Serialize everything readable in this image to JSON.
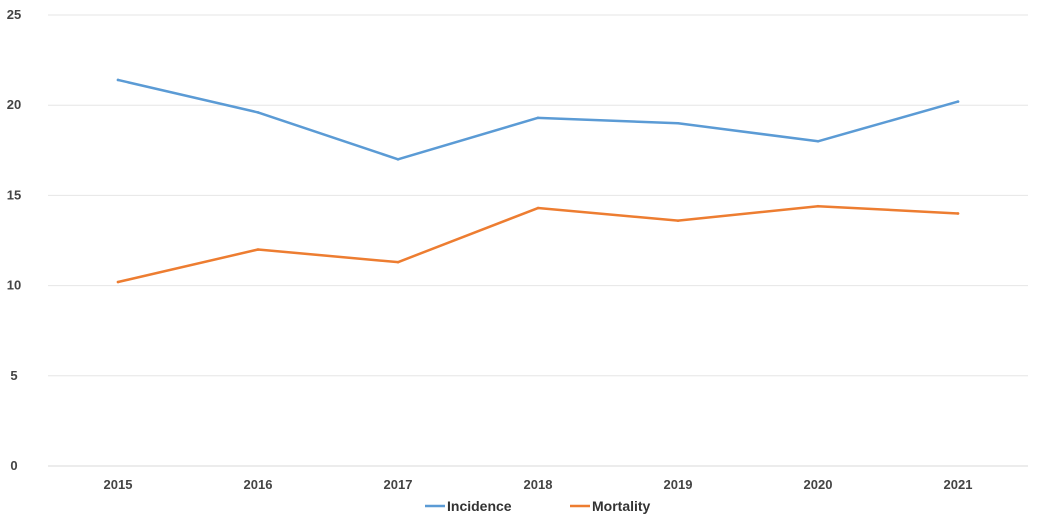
{
  "chart_data": {
    "type": "line",
    "title": "",
    "xlabel": "",
    "ylabel": "",
    "categories": [
      "2015",
      "2016",
      "2017",
      "2018",
      "2019",
      "2020",
      "2021"
    ],
    "ylim": [
      0,
      25
    ],
    "yticks": [
      0,
      5,
      10,
      15,
      20,
      25
    ],
    "grid": true,
    "legend_position": "bottom",
    "series": [
      {
        "name": "Incidence",
        "color": "#5b9bd5",
        "values": [
          21.4,
          19.6,
          17.0,
          19.3,
          19.0,
          18.0,
          20.2
        ]
      },
      {
        "name": "Mortality",
        "color": "#ed7d31",
        "values": [
          10.2,
          12.0,
          11.3,
          14.3,
          13.6,
          14.4,
          14.0
        ]
      }
    ]
  }
}
